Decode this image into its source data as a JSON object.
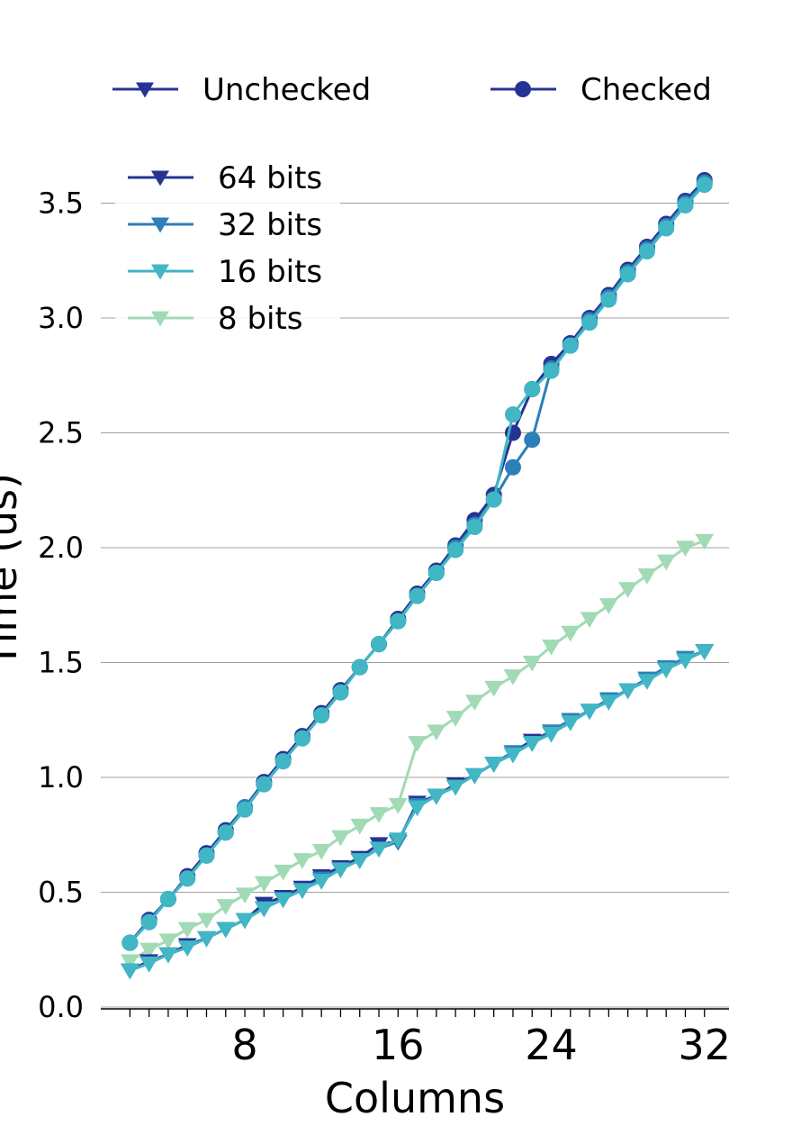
{
  "chart_data": {
    "type": "line",
    "title": "",
    "xlabel": "Columns",
    "ylabel": "Time (us)",
    "xlim": [
      1,
      33
    ],
    "ylim": [
      0.0,
      3.75
    ],
    "xticks": [
      8,
      16,
      24,
      32
    ],
    "xtick_labels": [
      "8",
      "16",
      "24",
      "32"
    ],
    "yticks": [
      0.0,
      0.5,
      1.0,
      1.5,
      2.0,
      2.5,
      3.0,
      3.5
    ],
    "ytick_labels": [
      "0.0",
      "0.5",
      "1.0",
      "1.5",
      "2.0",
      "2.5",
      "3.0",
      "3.5"
    ],
    "grid": "horizontal",
    "marker_legend": {
      "placement": "top",
      "entries": [
        {
          "label": "Unchecked",
          "marker": "triangle-down"
        },
        {
          "label": "Checked",
          "marker": "circle"
        }
      ]
    },
    "color_legend": {
      "placement": "upper-left",
      "entries": [
        {
          "label": "64 bits",
          "color": "#253494"
        },
        {
          "label": "32 bits",
          "color": "#2c7fb8"
        },
        {
          "label": "16 bits",
          "color": "#41b6c4"
        },
        {
          "label": "8 bits",
          "color": "#a1dab4"
        }
      ]
    },
    "x": [
      2,
      3,
      4,
      5,
      6,
      7,
      8,
      9,
      10,
      11,
      12,
      13,
      14,
      15,
      16,
      17,
      18,
      19,
      20,
      21,
      22,
      23,
      24,
      25,
      26,
      27,
      28,
      29,
      30,
      31,
      32
    ],
    "series": [
      {
        "group": "Checked",
        "bits": "64 bits",
        "color": "#253494",
        "marker": "circle",
        "values": [
          0.28,
          0.38,
          0.47,
          0.57,
          0.67,
          0.77,
          0.87,
          0.98,
          1.08,
          1.18,
          1.28,
          1.38,
          1.48,
          1.58,
          1.69,
          1.8,
          1.9,
          2.01,
          2.12,
          2.23,
          2.5,
          2.69,
          2.8,
          2.89,
          3.0,
          3.1,
          3.21,
          3.31,
          3.41,
          3.51,
          3.6
        ]
      },
      {
        "group": "Checked",
        "bits": "32 bits",
        "color": "#2c7fb8",
        "marker": "circle",
        "values": [
          0.28,
          0.37,
          0.47,
          0.56,
          0.66,
          0.76,
          0.87,
          0.97,
          1.07,
          1.17,
          1.27,
          1.37,
          1.48,
          1.58,
          1.68,
          1.79,
          1.89,
          2.0,
          2.1,
          2.21,
          2.35,
          2.47,
          2.78,
          2.88,
          2.99,
          3.09,
          3.2,
          3.3,
          3.4,
          3.5,
          3.59
        ]
      },
      {
        "group": "Checked",
        "bits": "16 bits",
        "color": "#41b6c4",
        "marker": "circle",
        "values": [
          0.28,
          0.37,
          0.47,
          0.56,
          0.66,
          0.76,
          0.86,
          0.97,
          1.07,
          1.17,
          1.27,
          1.37,
          1.48,
          1.58,
          1.68,
          1.79,
          1.89,
          1.99,
          2.09,
          2.21,
          2.58,
          2.69,
          2.77,
          2.88,
          2.98,
          3.08,
          3.19,
          3.29,
          3.39,
          3.49,
          3.58
        ]
      },
      {
        "group": "Unchecked",
        "bits": "64 bits",
        "color": "#253494",
        "marker": "triangle-down",
        "values": [
          0.16,
          0.2,
          0.23,
          0.27,
          0.3,
          0.34,
          0.38,
          0.45,
          0.48,
          0.52,
          0.57,
          0.61,
          0.65,
          0.71,
          0.72,
          0.89,
          0.92,
          0.97,
          1.01,
          1.06,
          1.11,
          1.16,
          1.2,
          1.25,
          1.29,
          1.34,
          1.38,
          1.43,
          1.48,
          1.52,
          1.55
        ]
      },
      {
        "group": "Unchecked",
        "bits": "32 bits",
        "color": "#2c7fb8",
        "marker": "triangle-down",
        "values": [
          0.16,
          0.19,
          0.23,
          0.26,
          0.3,
          0.34,
          0.38,
          0.43,
          0.47,
          0.51,
          0.56,
          0.6,
          0.64,
          0.69,
          0.72,
          0.88,
          0.92,
          0.96,
          1.01,
          1.06,
          1.11,
          1.15,
          1.2,
          1.25,
          1.29,
          1.34,
          1.38,
          1.43,
          1.48,
          1.52,
          1.55
        ]
      },
      {
        "group": "Unchecked",
        "bits": "16 bits",
        "color": "#41b6c4",
        "marker": "triangle-down",
        "values": [
          0.16,
          0.19,
          0.23,
          0.26,
          0.3,
          0.34,
          0.38,
          0.43,
          0.47,
          0.51,
          0.55,
          0.6,
          0.64,
          0.69,
          0.73,
          0.87,
          0.92,
          0.96,
          1.01,
          1.06,
          1.1,
          1.15,
          1.19,
          1.24,
          1.29,
          1.33,
          1.38,
          1.42,
          1.47,
          1.51,
          1.55
        ]
      },
      {
        "group": "Unchecked",
        "bits": "8 bits",
        "color": "#a1dab4",
        "marker": "triangle-down",
        "values": [
          0.2,
          0.25,
          0.29,
          0.34,
          0.38,
          0.44,
          0.49,
          0.54,
          0.59,
          0.64,
          0.68,
          0.74,
          0.79,
          0.84,
          0.88,
          1.15,
          1.2,
          1.26,
          1.33,
          1.39,
          1.44,
          1.5,
          1.57,
          1.63,
          1.69,
          1.75,
          1.82,
          1.88,
          1.94,
          2.0,
          2.03
        ]
      }
    ]
  }
}
